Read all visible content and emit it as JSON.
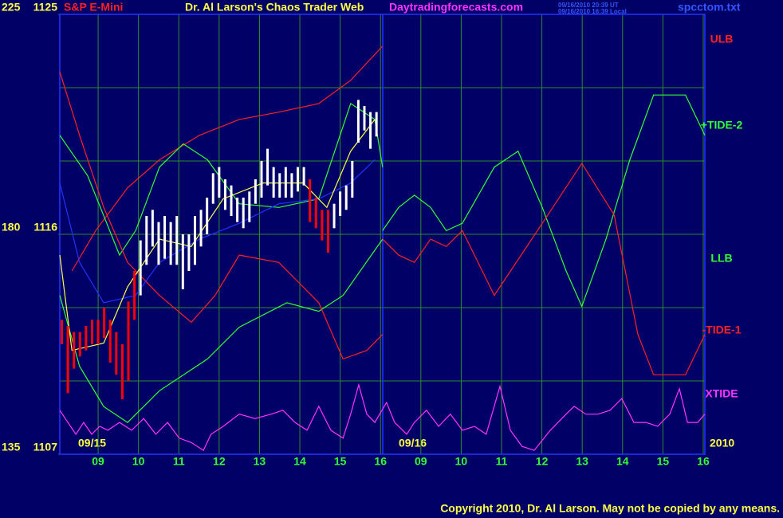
{
  "chart_data": {
    "type": "line",
    "title": "S&P E-Mini",
    "subtitle": "Dr. Al Larson's Chaos Trader Web",
    "site": "Daytradingforecasts.com",
    "file": "spcctom.txt",
    "timestamps": [
      "09/16/2010 20:39 UT",
      "09/16/2010 16:39 Local"
    ],
    "date_labels": [
      "09/15",
      "09/16"
    ],
    "year": "2010",
    "copyright": "Copyright 2010, Dr. Al Larson. May not be copied by any means.",
    "xlim": [
      8.05,
      24.04
    ],
    "xticks": [
      {
        "value": 9,
        "label": "09"
      },
      10,
      11,
      12,
      13,
      14,
      15,
      16,
      {
        "value": 17,
        "label": "09"
      },
      {
        "value": 18,
        "label": "10"
      },
      {
        "value": 19,
        "label": "11"
      },
      {
        "value": 20,
        "label": "12"
      },
      {
        "value": 21,
        "label": "13"
      },
      {
        "value": 22,
        "label": "14"
      },
      {
        "value": 23,
        "label": "15"
      },
      {
        "value": 24,
        "label": "16"
      }
    ],
    "ylim": [
      1107,
      1125
    ],
    "yticks": [
      1107,
      1116,
      1125
    ],
    "minor_yticks": [
      1110,
      1113,
      1119,
      1122
    ],
    "y2lim": [
      135,
      225
    ],
    "y2ticks": [
      135,
      180,
      225
    ],
    "grid": true,
    "price_bars": {
      "x": [
        8.1,
        8.25,
        8.4,
        8.55,
        8.7,
        8.85,
        9.0,
        9.15,
        9.3,
        9.45,
        9.6,
        9.75,
        9.9,
        10.05,
        10.2,
        10.35,
        10.5,
        10.65,
        10.8,
        10.95,
        11.1,
        11.25,
        11.4,
        11.55,
        11.7,
        11.85,
        12.0,
        12.15,
        12.3,
        12.45,
        12.6,
        12.75,
        12.9,
        13.05,
        13.2,
        13.35,
        13.5,
        13.65,
        13.8,
        13.95,
        14.1,
        14.25,
        14.4,
        14.55,
        14.7,
        14.85,
        15.0,
        15.15,
        15.3,
        15.45,
        15.6,
        15.75,
        15.9
      ],
      "high": [
        1112.5,
        1112.25,
        1112,
        1112,
        1112.25,
        1112.5,
        1112.5,
        1113,
        1112.5,
        1112,
        1111.5,
        1113.25,
        1114.5,
        1115.75,
        1116.75,
        1117,
        1116.5,
        1116.75,
        1116.5,
        1116.75,
        1116,
        1116,
        1116.75,
        1117,
        1117.5,
        1118.5,
        1118.75,
        1118.25,
        1118,
        1117.5,
        1117.5,
        1117.75,
        1118.25,
        1119,
        1119.5,
        1118.75,
        1118.5,
        1118.75,
        1118.5,
        1118.75,
        1118.75,
        1118.25,
        1117.5,
        1117,
        1117,
        1117.25,
        1117.75,
        1118,
        1119,
        1121.5,
        1121.25,
        1121,
        1121
      ],
      "low": [
        1111.5,
        1109.5,
        1110.5,
        1111,
        1111.25,
        1111.5,
        1111.5,
        1111.75,
        1110.75,
        1110.25,
        1109.25,
        1110,
        1112.5,
        1113.5,
        1114.75,
        1115.5,
        1114.75,
        1115,
        1114.75,
        1114.75,
        1113.75,
        1114.5,
        1114.75,
        1115.5,
        1116,
        1117.25,
        1117.5,
        1117,
        1116.75,
        1116.5,
        1116.25,
        1116.5,
        1117.25,
        1117.5,
        1118,
        1117.5,
        1117.5,
        1117.5,
        1117.5,
        1117.75,
        1118,
        1116.5,
        1116.25,
        1115.75,
        1115.25,
        1116.25,
        1116.75,
        1117,
        1117.5,
        1119.75,
        1120.25,
        1119.5,
        1120
      ],
      "colors": [
        "#ff0000",
        "#ff0000",
        "#ff0000",
        "#ff0000",
        "#ff0000",
        "#ff0000",
        "#ff0000",
        "#ff0000",
        "#ff0000",
        "#ff0000",
        "#ff0000",
        "#ff0000",
        "#ff0000",
        "#ffffff",
        "#ffffff",
        "#ffffff",
        "#ffffff",
        "#ffffff",
        "#ffffff",
        "#ffffff",
        "#ffffff",
        "#ffffff",
        "#ffffff",
        "#ffffff",
        "#ffffff",
        "#ffffff",
        "#ffffff",
        "#ffffff",
        "#ffffff",
        "#ffffff",
        "#ffffff",
        "#ffffff",
        "#ffffff",
        "#ffffff",
        "#ffffff",
        "#ffffff",
        "#ffffff",
        "#ffffff",
        "#ffffff",
        "#ffffff",
        "#ffffff",
        "#ff0000",
        "#ff0000",
        "#ff0000",
        "#ff0000",
        "#ffffff",
        "#ffffff",
        "#ffffff",
        "#ffffff",
        "#ffffff",
        "#ffffff",
        "#ffffff",
        "#ffffff"
      ]
    },
    "series": [
      {
        "name": "ULB",
        "color": "#ff2020",
        "x": [
          8.35,
          8.94,
          9.73,
          10.52,
          11.51,
          12.5,
          13.48,
          14.47,
          15.26,
          16.05
        ],
        "values": [
          1114.5,
          1116.15,
          1117.9,
          1119.05,
          1120.05,
          1120.7,
          1121,
          1121.35,
          1122.3,
          1123.7
        ]
      },
      {
        "name": "+TIDE-2",
        "color": "#33ff33",
        "x": [
          8.05,
          8.74,
          9.53,
          9.93,
          10.52,
          11.11,
          11.71,
          12.5,
          13.48,
          14.47,
          15.26,
          15.86,
          16.05,
          16.05,
          16.05,
          16.45,
          16.84,
          17.24,
          17.63,
          18.03,
          18.82,
          19.41,
          20.01,
          20.6,
          20.99,
          21.59,
          22.18,
          22.77,
          23.56,
          24.04
        ],
        "values": [
          1120.05,
          1118.4,
          1115.15,
          1116.15,
          1118.75,
          1119.7,
          1119.05,
          1117.25,
          1117.1,
          1117.45,
          1121.35,
          1120.7,
          1118.75,
          null,
          1116.15,
          1117.1,
          1117.6,
          1117.1,
          1116.15,
          1116.45,
          1118.75,
          1119.4,
          1117.1,
          1114.5,
          1113.05,
          1115.8,
          1119.05,
          1121.7,
          1121.7,
          1120.05
        ]
      },
      {
        "name": "LLB",
        "color": "#33ff33",
        "x": [
          8.05,
          8.54,
          9.14,
          9.73,
          10.52,
          11.71,
          12.5,
          13.68,
          14.47,
          15.07,
          16.05
        ],
        "values": [
          1113.5,
          1110.6,
          1108.95,
          1108.3,
          1109.6,
          1110.9,
          1112.2,
          1113.2,
          1112.85,
          1113.5,
          1115.8
        ]
      },
      {
        "name": "-TIDE-1",
        "color": "#ff2020",
        "x": [
          8.05,
          8.54,
          9.14,
          9.73,
          10.52,
          11.31,
          11.9,
          12.5,
          13.48,
          14.47,
          15.07,
          15.66,
          16.05,
          16.05,
          16.05,
          16.45,
          16.84,
          17.24,
          17.63,
          18.03,
          18.82,
          20.01,
          20.99,
          21.79,
          22.38,
          22.77,
          23.56,
          24.04
        ],
        "values": [
          1122.65,
          1120.05,
          1117.1,
          1114.85,
          1113.5,
          1112.4,
          1113.5,
          1115.15,
          1114.85,
          1113.2,
          1110.9,
          1111.25,
          1111.9,
          null,
          1115.8,
          1115.15,
          1114.85,
          1115.8,
          1115.5,
          1116.15,
          1113.5,
          1116.45,
          1118.9,
          1116.8,
          1111.9,
          1110.25,
          1110.25,
          1111.9
        ]
      },
      {
        "name": "XTIDE",
        "color": "#ff33ff",
        "axis": "y2",
        "x": [
          8.05,
          8.25,
          8.45,
          8.64,
          8.84,
          9.04,
          9.24,
          9.53,
          9.83,
          10.13,
          10.43,
          10.72,
          11.01,
          11.31,
          11.61,
          11.8,
          12.1,
          12.5,
          12.89,
          13.29,
          13.58,
          13.88,
          14.18,
          14.47,
          14.77,
          15.07,
          15.26,
          15.46,
          15.66,
          15.86,
          16.15,
          16.35,
          16.65,
          16.84,
          17.14,
          17.44,
          17.73,
          18.03,
          18.33,
          18.62,
          18.96,
          19.22,
          19.51,
          19.81,
          20.21,
          20.6,
          20.8,
          21.09,
          21.39,
          21.69,
          21.98,
          22.28,
          22.58,
          22.87,
          23.17,
          23.41,
          23.61,
          23.86,
          24.04
        ],
        "values": [
          144.0,
          141.5,
          139.1,
          141.5,
          139.1,
          140.7,
          139.9,
          141.5,
          139.9,
          142.3,
          139.1,
          141.5,
          138.3,
          137.4,
          135.8,
          139.1,
          140.7,
          143.2,
          142.3,
          143.2,
          144.0,
          141.5,
          139.9,
          144.8,
          139.9,
          138.3,
          143.2,
          149.2,
          143.2,
          141.5,
          145.6,
          141.5,
          139.1,
          141.5,
          144.0,
          140.7,
          143.2,
          139.9,
          140.7,
          139.1,
          148.9,
          139.9,
          136.6,
          135.8,
          139.9,
          143.2,
          144.8,
          143.2,
          143.2,
          144.0,
          146.4,
          141.5,
          141.5,
          140.7,
          143.2,
          148.4,
          141.5,
          141.5,
          143.2
        ]
      },
      {
        "color": "#2233ff",
        "x": [
          8.05,
          8.54,
          9.14,
          9.93,
          10.52,
          11.51,
          12.5,
          13.48,
          14.47,
          15.26,
          15.86
        ],
        "values": [
          1118.1,
          1114.85,
          1113.2,
          1113.5,
          1114.85,
          1115.8,
          1116.45,
          1117.25,
          1117.45,
          1118.1,
          1119.05
        ]
      },
      {
        "color": "#ffff44",
        "x": [
          8.05,
          8.35,
          9.14,
          9.73,
          10.52,
          11.31,
          12.1,
          13.09,
          14.08,
          14.67,
          15.26,
          15.86
        ],
        "values": [
          1115.15,
          1111.25,
          1111.55,
          1113.85,
          1115.8,
          1115.5,
          1117.45,
          1118.1,
          1118.1,
          1117.1,
          1119.4,
          1120.7
        ]
      }
    ]
  }
}
